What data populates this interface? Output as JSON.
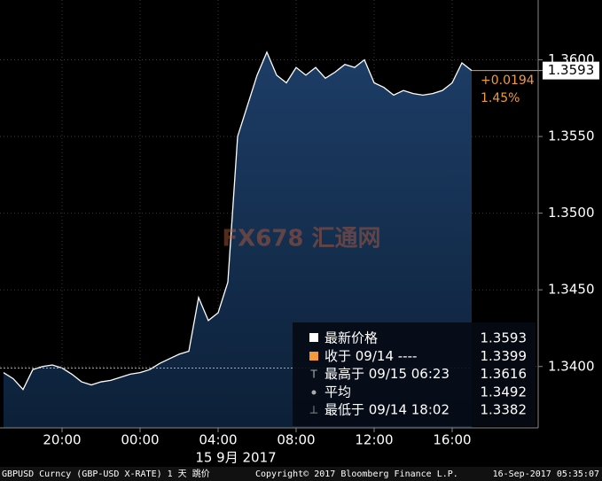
{
  "chart_data": {
    "type": "area",
    "categories": [
      null,
      null,
      null,
      null,
      null,
      null,
      "20:00",
      null,
      null,
      null,
      null,
      null,
      null,
      null,
      "00:00",
      null,
      null,
      null,
      null,
      null,
      null,
      null,
      "04:00",
      null,
      null,
      null,
      null,
      null,
      null,
      null,
      "08:00",
      null,
      null,
      null,
      null,
      null,
      null,
      null,
      "12:00",
      null,
      null,
      null,
      null,
      null,
      null,
      null,
      "16:00",
      null,
      null
    ],
    "series": [
      {
        "color": "#ffffff",
        "values": [
          1.3396,
          1.3392,
          1.3385,
          1.3398,
          1.34,
          1.3401,
          1.3399,
          1.3395,
          1.339,
          1.3388,
          1.339,
          1.3391,
          1.3393,
          1.3395,
          1.3396,
          1.3398,
          1.3402,
          1.3405,
          1.3408,
          1.341,
          1.3445,
          1.343,
          1.3435,
          1.3455,
          1.355,
          1.357,
          1.359,
          1.3605,
          1.359,
          1.3585,
          1.3595,
          1.359,
          1.3595,
          1.3588,
          1.3592,
          1.3597,
          1.3595,
          1.36,
          1.3585,
          1.3582,
          1.3577,
          1.358,
          1.3578,
          1.3577,
          1.3578,
          1.358,
          1.3585,
          1.3598,
          1.3593
        ]
      }
    ],
    "ylim": [
      1.336,
      1.3639
    ],
    "yticks": [
      {
        "value": 1.36,
        "label": "1.3600"
      },
      {
        "value": 1.355,
        "label": "1.3550"
      },
      {
        "value": 1.35,
        "label": "1.3500"
      },
      {
        "value": 1.345,
        "label": "1.3450"
      },
      {
        "value": 1.34,
        "label": "1.3400"
      }
    ],
    "grid": true,
    "date_label": "15 9月 2017",
    "change_label": "+0.0194",
    "change_pct_label": "1.45%",
    "legend": [
      {
        "label": "最新价格",
        "value": 1.3593
      },
      {
        "label": "收于 09/14 ----",
        "value": 1.3399
      },
      {
        "label": "最高于 09/15 06:23",
        "value": 1.3616
      },
      {
        "label": "平均",
        "value": 1.3492
      },
      {
        "label": "最低于 09/14 18:02",
        "value": 1.3382
      }
    ],
    "watermark": "FX678 汇通网",
    "footer": [
      "GBPUSD Curncy (GBP-USD X-RATE) 1 天  跳价",
      "Copyright© 2017 Bloomberg Finance L.P.",
      "16-Sep-2017 05:35:07"
    ]
  }
}
